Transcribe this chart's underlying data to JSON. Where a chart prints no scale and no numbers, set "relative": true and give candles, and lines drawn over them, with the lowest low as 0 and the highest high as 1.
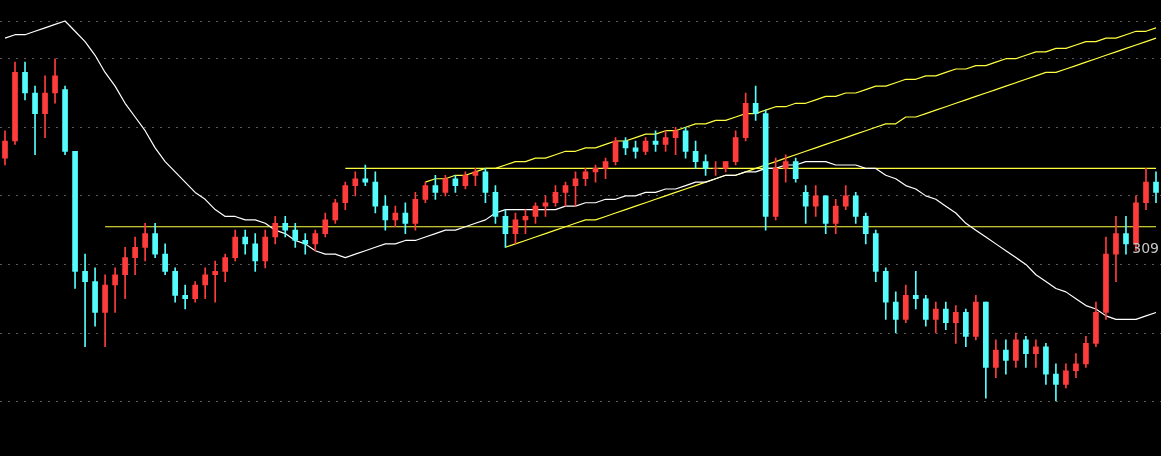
{
  "chart_data": {
    "type": "candlestick",
    "relative": true,
    "grid": "y",
    "categories": [
      null,
      null,
      null,
      null,
      null,
      null,
      null,
      null,
      null,
      null,
      null,
      null,
      null,
      null,
      null,
      null,
      null,
      null,
      null,
      null,
      null,
      null,
      null,
      null,
      null,
      null,
      null,
      null,
      null,
      null,
      null,
      null,
      null,
      null,
      null,
      null,
      null,
      null,
      null,
      null,
      null,
      null,
      null,
      null,
      null,
      null,
      null,
      null,
      null,
      null,
      null,
      null,
      null,
      null,
      null,
      null,
      null,
      null,
      null,
      null,
      null,
      null,
      null,
      null,
      null,
      null,
      null,
      null,
      null,
      null,
      null,
      null,
      null,
      null,
      null,
      null,
      null,
      null,
      null,
      null,
      null,
      null,
      null,
      null,
      null,
      null,
      null,
      null,
      null,
      null,
      null,
      null,
      null,
      null,
      null,
      null,
      null,
      null,
      null,
      null,
      null,
      null,
      null,
      null,
      null,
      null,
      null,
      null,
      null,
      null,
      null,
      null,
      null,
      null,
      null,
      null
    ],
    "ohlc": [
      [
        0.71,
        0.79,
        0.69,
        0.76
      ],
      [
        0.76,
        0.99,
        0.75,
        0.96
      ],
      [
        0.96,
        0.99,
        0.88,
        0.9
      ],
      [
        0.9,
        0.92,
        0.72,
        0.84
      ],
      [
        0.84,
        0.95,
        0.77,
        0.9
      ],
      [
        0.9,
        1.0,
        0.87,
        0.95
      ],
      [
        0.91,
        0.92,
        0.72,
        0.73
      ],
      [
        0.73,
        0.73,
        0.33,
        0.38
      ],
      [
        0.38,
        0.43,
        0.16,
        0.35
      ],
      [
        0.35,
        0.39,
        0.22,
        0.26
      ],
      [
        0.26,
        0.37,
        0.16,
        0.34
      ],
      [
        0.34,
        0.39,
        0.26,
        0.37
      ],
      [
        0.37,
        0.45,
        0.3,
        0.42
      ],
      [
        0.42,
        0.48,
        0.37,
        0.45
      ],
      [
        0.45,
        0.52,
        0.41,
        0.49
      ],
      [
        0.49,
        0.52,
        0.42,
        0.43
      ],
      [
        0.43,
        0.46,
        0.37,
        0.38
      ],
      [
        0.38,
        0.39,
        0.29,
        0.31
      ],
      [
        0.31,
        0.34,
        0.27,
        0.3
      ],
      [
        0.3,
        0.35,
        0.29,
        0.34
      ],
      [
        0.34,
        0.39,
        0.3,
        0.37
      ],
      [
        0.37,
        0.41,
        0.29,
        0.38
      ],
      [
        0.38,
        0.43,
        0.35,
        0.42
      ],
      [
        0.42,
        0.5,
        0.41,
        0.48
      ],
      [
        0.48,
        0.5,
        0.43,
        0.46
      ],
      [
        0.46,
        0.49,
        0.38,
        0.41
      ],
      [
        0.41,
        0.5,
        0.39,
        0.48
      ],
      [
        0.48,
        0.54,
        0.46,
        0.52
      ],
      [
        0.52,
        0.54,
        0.48,
        0.5
      ],
      [
        0.5,
        0.52,
        0.45,
        0.47
      ],
      [
        0.47,
        0.49,
        0.43,
        0.46
      ],
      [
        0.46,
        0.5,
        0.44,
        0.49
      ],
      [
        0.49,
        0.55,
        0.48,
        0.53
      ],
      [
        0.53,
        0.59,
        0.52,
        0.58
      ],
      [
        0.58,
        0.64,
        0.56,
        0.63
      ],
      [
        0.63,
        0.67,
        0.6,
        0.65
      ],
      [
        0.65,
        0.69,
        0.63,
        0.64
      ],
      [
        0.64,
        0.67,
        0.55,
        0.57
      ],
      [
        0.57,
        0.6,
        0.5,
        0.53
      ],
      [
        0.53,
        0.57,
        0.51,
        0.55
      ],
      [
        0.55,
        0.58,
        0.49,
        0.52
      ],
      [
        0.52,
        0.61,
        0.5,
        0.59
      ],
      [
        0.59,
        0.64,
        0.58,
        0.63
      ],
      [
        0.63,
        0.66,
        0.59,
        0.61
      ],
      [
        0.61,
        0.66,
        0.6,
        0.65
      ],
      [
        0.65,
        0.66,
        0.61,
        0.63
      ],
      [
        0.63,
        0.67,
        0.62,
        0.66
      ],
      [
        0.66,
        0.68,
        0.63,
        0.67
      ],
      [
        0.67,
        0.68,
        0.58,
        0.61
      ],
      [
        0.61,
        0.63,
        0.52,
        0.54
      ],
      [
        0.54,
        0.56,
        0.45,
        0.49
      ],
      [
        0.49,
        0.55,
        0.46,
        0.53
      ],
      [
        0.53,
        0.56,
        0.49,
        0.54
      ],
      [
        0.54,
        0.58,
        0.52,
        0.57
      ],
      [
        0.57,
        0.6,
        0.54,
        0.58
      ],
      [
        0.58,
        0.63,
        0.57,
        0.61
      ],
      [
        0.61,
        0.64,
        0.57,
        0.63
      ],
      [
        0.63,
        0.67,
        0.57,
        0.65
      ],
      [
        0.65,
        0.68,
        0.63,
        0.67
      ],
      [
        0.67,
        0.69,
        0.64,
        0.68
      ],
      [
        0.68,
        0.71,
        0.65,
        0.7
      ],
      [
        0.7,
        0.77,
        0.69,
        0.76
      ],
      [
        0.76,
        0.77,
        0.72,
        0.74
      ],
      [
        0.74,
        0.76,
        0.71,
        0.73
      ],
      [
        0.73,
        0.77,
        0.72,
        0.76
      ],
      [
        0.76,
        0.79,
        0.73,
        0.75
      ],
      [
        0.75,
        0.79,
        0.73,
        0.77
      ],
      [
        0.77,
        0.8,
        0.72,
        0.79
      ],
      [
        0.79,
        0.8,
        0.71,
        0.73
      ],
      [
        0.73,
        0.76,
        0.68,
        0.7
      ],
      [
        0.7,
        0.72,
        0.66,
        0.68
      ],
      [
        0.68,
        0.7,
        0.66,
        0.68
      ],
      [
        0.68,
        0.7,
        0.67,
        0.7
      ],
      [
        0.7,
        0.79,
        0.69,
        0.77
      ],
      [
        0.77,
        0.9,
        0.76,
        0.87
      ],
      [
        0.87,
        0.92,
        0.82,
        0.84
      ],
      [
        0.84,
        0.85,
        0.5,
        0.54
      ],
      [
        0.54,
        0.71,
        0.53,
        0.68
      ],
      [
        0.68,
        0.72,
        0.64,
        0.7
      ],
      [
        0.7,
        0.71,
        0.64,
        0.65
      ],
      [
        0.61,
        0.63,
        0.52,
        0.57
      ],
      [
        0.57,
        0.63,
        0.54,
        0.6
      ],
      [
        0.6,
        0.6,
        0.49,
        0.52
      ],
      [
        0.52,
        0.59,
        0.49,
        0.57
      ],
      [
        0.57,
        0.63,
        0.56,
        0.6
      ],
      [
        0.6,
        0.61,
        0.52,
        0.54
      ],
      [
        0.54,
        0.55,
        0.46,
        0.49
      ],
      [
        0.49,
        0.5,
        0.35,
        0.38
      ],
      [
        0.38,
        0.39,
        0.24,
        0.29
      ],
      [
        0.29,
        0.32,
        0.2,
        0.24
      ],
      [
        0.24,
        0.34,
        0.23,
        0.31
      ],
      [
        0.31,
        0.38,
        0.27,
        0.3
      ],
      [
        0.3,
        0.31,
        0.22,
        0.24
      ],
      [
        0.24,
        0.29,
        0.2,
        0.27
      ],
      [
        0.27,
        0.29,
        0.21,
        0.23
      ],
      [
        0.23,
        0.28,
        0.17,
        0.26
      ],
      [
        0.26,
        0.27,
        0.16,
        0.19
      ],
      [
        0.19,
        0.31,
        0.18,
        0.29
      ],
      [
        0.29,
        0.29,
        0.01,
        0.1
      ],
      [
        0.1,
        0.18,
        0.07,
        0.15
      ],
      [
        0.15,
        0.18,
        0.08,
        0.12
      ],
      [
        0.12,
        0.2,
        0.1,
        0.18
      ],
      [
        0.18,
        0.19,
        0.1,
        0.14
      ],
      [
        0.14,
        0.18,
        0.1,
        0.16
      ],
      [
        0.16,
        0.17,
        0.05,
        0.08
      ],
      [
        0.08,
        0.11,
        0.0,
        0.05
      ],
      [
        0.05,
        0.11,
        0.04,
        0.09
      ],
      [
        0.09,
        0.14,
        0.07,
        0.11
      ],
      [
        0.11,
        0.19,
        0.1,
        0.17
      ],
      [
        0.17,
        0.29,
        0.16,
        0.26
      ],
      [
        0.26,
        0.48,
        0.24,
        0.43
      ],
      [
        0.43,
        0.54,
        0.35,
        0.49
      ],
      [
        0.49,
        0.54,
        0.43,
        0.46
      ],
      [
        0.46,
        0.6,
        0.44,
        0.58
      ],
      [
        0.58,
        0.68,
        0.56,
        0.64
      ],
      [
        0.64,
        0.67,
        0.58,
        0.61
      ]
    ],
    "colors": [
      "#ff3c3c",
      "#ff3c3c",
      "#54fcfc",
      "#54fcfc",
      "#ff3c3c",
      "#ff3c3c",
      "#54fcfc",
      "#54fcfc",
      "#54fcfc",
      "#54fcfc",
      "#ff3c3c",
      "#ff3c3c",
      "#ff3c3c",
      "#ff3c3c",
      "#ff3c3c",
      "#54fcfc",
      "#54fcfc",
      "#54fcfc",
      "#54fcfc",
      "#ff3c3c",
      "#ff3c3c",
      "#ff3c3c",
      "#ff3c3c",
      "#ff3c3c",
      "#54fcfc",
      "#54fcfc",
      "#ff3c3c",
      "#ff3c3c",
      "#54fcfc",
      "#54fcfc",
      "#54fcfc",
      "#ff3c3c",
      "#ff3c3c",
      "#ff3c3c",
      "#ff3c3c",
      "#ff3c3c",
      "#54fcfc",
      "#54fcfc",
      "#54fcfc",
      "#ff3c3c",
      "#54fcfc",
      "#ff3c3c",
      "#ff3c3c",
      "#54fcfc",
      "#ff3c3c",
      "#54fcfc",
      "#ff3c3c",
      "#ff3c3c",
      "#54fcfc",
      "#54fcfc",
      "#54fcfc",
      "#ff3c3c",
      "#ff3c3c",
      "#ff3c3c",
      "#ff3c3c",
      "#ff3c3c",
      "#ff3c3c",
      "#ff3c3c",
      "#ff3c3c",
      "#ff3c3c",
      "#ff3c3c",
      "#ff3c3c",
      "#54fcfc",
      "#54fcfc",
      "#ff3c3c",
      "#54fcfc",
      "#ff3c3c",
      "#ff3c3c",
      "#54fcfc",
      "#54fcfc",
      "#54fcfc",
      "#ff3c3c",
      "#ff3c3c",
      "#ff3c3c",
      "#ff3c3c",
      "#54fcfc",
      "#54fcfc",
      "#ff3c3c",
      "#ff3c3c",
      "#54fcfc",
      "#54fcfc",
      "#ff3c3c",
      "#54fcfc",
      "#ff3c3c",
      "#ff3c3c",
      "#54fcfc",
      "#54fcfc",
      "#54fcfc",
      "#54fcfc",
      "#54fcfc",
      "#ff3c3c",
      "#54fcfc",
      "#54fcfc",
      "#ff3c3c",
      "#54fcfc",
      "#ff3c3c",
      "#54fcfc",
      "#ff3c3c",
      "#54fcfc",
      "#ff3c3c",
      "#54fcfc",
      "#ff3c3c",
      "#54fcfc",
      "#ff3c3c",
      "#54fcfc",
      "#54fcfc",
      "#ff3c3c",
      "#ff3c3c",
      "#ff3c3c",
      "#ff3c3c",
      "#ff3c3c",
      "#ff3c3c",
      "#54fcfc",
      "#ff3c3c",
      "#ff3c3c",
      "#54fcfc"
    ],
    "series": [
      {
        "type": "line",
        "color": "#ffffff",
        "values": [
          1.06,
          1.07,
          1.07,
          1.08,
          1.09,
          1.1,
          1.11,
          1.08,
          1.05,
          1.01,
          0.96,
          0.92,
          0.87,
          0.83,
          0.79,
          0.74,
          0.7,
          0.67,
          0.64,
          0.61,
          0.59,
          0.56,
          0.54,
          0.54,
          0.53,
          0.53,
          0.52,
          0.5,
          0.49,
          0.47,
          0.46,
          0.44,
          0.43,
          0.43,
          0.42,
          0.43,
          0.44,
          0.45,
          0.46,
          0.46,
          0.47,
          0.47,
          0.48,
          0.49,
          0.5,
          0.5,
          0.51,
          0.52,
          0.53,
          0.55,
          0.56,
          0.56,
          0.56,
          0.56,
          0.56,
          0.56,
          0.57,
          0.57,
          0.58,
          0.58,
          0.59,
          0.59,
          0.6,
          0.6,
          0.61,
          0.61,
          0.62,
          0.62,
          0.63,
          0.64,
          0.64,
          0.65,
          0.66,
          0.66,
          0.67,
          0.67,
          0.68,
          0.68,
          0.69,
          0.69,
          0.7,
          0.7,
          0.7,
          0.69,
          0.69,
          0.69,
          0.68,
          0.68,
          0.66,
          0.65,
          0.63,
          0.62,
          0.6,
          0.59,
          0.57,
          0.55,
          0.52,
          0.5,
          0.48,
          0.46,
          0.44,
          0.42,
          0.4,
          0.37,
          0.35,
          0.33,
          0.32,
          0.3,
          0.28,
          0.27,
          0.25,
          0.24,
          0.24,
          0.24,
          0.25,
          0.26
        ]
      },
      {
        "type": "line",
        "color": "#ffff40",
        "values": [
          null,
          null,
          null,
          null,
          null,
          null,
          null,
          null,
          null,
          null,
          null,
          null,
          null,
          null,
          null,
          null,
          null,
          null,
          null,
          null,
          null,
          null,
          null,
          null,
          null,
          null,
          null,
          null,
          null,
          null,
          null,
          null,
          null,
          null,
          0.68,
          0.68,
          0.68,
          0.68,
          0.68,
          0.68,
          0.68,
          0.68,
          0.68,
          0.68,
          0.68,
          0.68,
          0.68,
          0.68,
          0.68,
          0.68,
          0.68,
          0.68,
          0.68,
          0.68,
          0.68,
          0.68,
          0.68,
          0.68,
          0.68,
          0.68,
          0.68,
          0.68,
          0.68,
          0.68,
          0.68,
          0.68,
          0.68,
          0.68,
          0.68,
          0.68,
          0.68,
          0.68,
          0.68,
          0.68,
          0.68,
          0.68,
          0.68,
          0.68,
          0.68,
          0.68,
          0.68,
          0.68,
          0.68,
          0.68,
          0.68,
          0.68,
          0.68,
          0.68,
          0.68,
          0.68,
          0.68,
          0.68,
          0.68,
          0.68,
          0.68,
          0.68,
          0.68,
          0.68,
          0.68,
          0.68,
          0.68,
          0.68,
          0.68,
          0.68,
          0.68,
          0.68,
          0.68,
          0.68,
          0.68,
          0.68,
          0.68,
          0.68,
          0.68,
          0.68,
          0.68,
          0.68
        ]
      },
      {
        "type": "line",
        "color": "#ffff40",
        "values": [
          null,
          null,
          null,
          null,
          null,
          null,
          null,
          null,
          null,
          null,
          0.51,
          0.51,
          0.51,
          0.51,
          0.51,
          0.51,
          0.51,
          0.51,
          0.51,
          0.51,
          0.51,
          0.51,
          0.51,
          0.51,
          0.51,
          0.51,
          0.51,
          0.51,
          0.51,
          0.51,
          0.51,
          0.51,
          0.51,
          0.51,
          0.51,
          0.51,
          0.51,
          0.51,
          0.51,
          0.51,
          0.51,
          0.51,
          0.51,
          0.51,
          0.51,
          0.51,
          0.51,
          0.51,
          0.51,
          0.51,
          0.51,
          0.51,
          0.51,
          0.51,
          0.51,
          0.51,
          0.51,
          0.51,
          0.51,
          0.51,
          0.51,
          0.51,
          0.51,
          0.51,
          0.51,
          0.51,
          0.51,
          0.51,
          0.51,
          0.51,
          0.51,
          0.51,
          0.51,
          0.51,
          0.51,
          0.51,
          0.51,
          0.51,
          0.51,
          0.51,
          0.51,
          0.51,
          0.51,
          0.51,
          0.51,
          0.51,
          0.51,
          0.51,
          0.51,
          0.51,
          0.51,
          0.51,
          0.51,
          0.51,
          0.51,
          0.51,
          0.51,
          0.51,
          0.51,
          0.51,
          0.51,
          0.51,
          0.51,
          0.51,
          0.51,
          0.51,
          0.51,
          0.51,
          0.51,
          0.51,
          0.51,
          0.51,
          0.51,
          0.51,
          0.51,
          0.51
        ]
      },
      {
        "type": "line",
        "color": "#ffff40",
        "values": [
          null,
          null,
          null,
          null,
          null,
          null,
          null,
          null,
          null,
          null,
          null,
          null,
          null,
          null,
          null,
          null,
          null,
          null,
          null,
          null,
          null,
          null,
          null,
          null,
          null,
          null,
          null,
          null,
          null,
          null,
          null,
          null,
          null,
          null,
          null,
          null,
          null,
          null,
          null,
          null,
          null,
          null,
          0.64,
          0.65,
          0.65,
          0.66,
          0.66,
          0.67,
          0.68,
          0.68,
          0.69,
          0.7,
          0.7,
          0.71,
          0.71,
          0.72,
          0.73,
          0.73,
          0.74,
          0.74,
          0.75,
          0.76,
          0.76,
          0.77,
          0.78,
          0.78,
          0.79,
          0.79,
          0.8,
          0.81,
          0.81,
          0.82,
          0.82,
          0.83,
          0.84,
          0.84,
          0.85,
          0.86,
          0.86,
          0.87,
          0.87,
          0.88,
          0.89,
          0.89,
          0.9,
          0.9,
          0.91,
          0.92,
          0.92,
          0.93,
          0.94,
          0.94,
          0.95,
          0.95,
          0.96,
          0.97,
          0.97,
          0.98,
          0.98,
          0.99,
          1.0,
          1.0,
          1.01,
          1.02,
          1.02,
          1.03,
          1.03,
          1.04,
          1.05,
          1.05,
          1.06,
          1.06,
          1.07,
          1.08,
          1.08,
          1.09
        ]
      },
      {
        "type": "line",
        "color": "#ffff40",
        "values": [
          null,
          null,
          null,
          null,
          null,
          null,
          null,
          null,
          null,
          null,
          null,
          null,
          null,
          null,
          null,
          null,
          null,
          null,
          null,
          null,
          null,
          null,
          null,
          null,
          null,
          null,
          null,
          null,
          null,
          null,
          null,
          null,
          null,
          null,
          null,
          null,
          null,
          null,
          null,
          null,
          null,
          null,
          null,
          null,
          null,
          null,
          null,
          null,
          null,
          null,
          0.45,
          0.46,
          0.47,
          0.48,
          0.49,
          0.5,
          0.51,
          0.52,
          0.53,
          0.53,
          0.54,
          0.55,
          0.56,
          0.57,
          0.58,
          0.59,
          0.6,
          0.61,
          0.62,
          0.63,
          0.64,
          0.65,
          0.66,
          0.66,
          0.67,
          0.68,
          0.69,
          0.7,
          0.71,
          0.72,
          0.73,
          0.74,
          0.75,
          0.76,
          0.77,
          0.78,
          0.79,
          0.8,
          0.81,
          0.81,
          0.83,
          0.83,
          0.84,
          0.85,
          0.86,
          0.87,
          0.88,
          0.89,
          0.9,
          0.91,
          0.92,
          0.93,
          0.94,
          0.95,
          0.96,
          0.96,
          0.97,
          0.98,
          0.99,
          1.0,
          1.01,
          1.02,
          1.03,
          1.04,
          1.05,
          1.06
        ]
      }
    ],
    "annotations": [
      "309"
    ]
  }
}
